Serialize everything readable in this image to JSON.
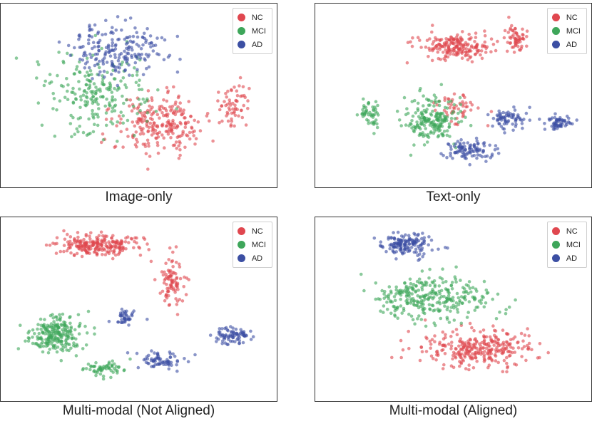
{
  "colors": {
    "NC": "#e0474f",
    "MCI": "#3ea65a",
    "AD": "#3c4fa3"
  },
  "panels": [
    {
      "caption": "Image-only",
      "legend": [
        "NC",
        "MCI",
        "AD"
      ]
    },
    {
      "caption": "Text-only",
      "legend": [
        "NC",
        "MCI",
        "AD"
      ]
    },
    {
      "caption": "Multi-modal (Not Aligned)",
      "legend": [
        "NC",
        "MCI",
        "AD"
      ]
    },
    {
      "caption": "Multi-modal (Aligned)",
      "legend": [
        "NC",
        "MCI",
        "AD"
      ]
    }
  ],
  "chart_data": [
    {
      "type": "scatter",
      "title": "Image-only",
      "legend_position": "top-right",
      "axes_visible": false,
      "series": [
        {
          "name": "NC",
          "color": "#e0474f",
          "clusters": [
            {
              "cx": 0.58,
              "cy": 0.66,
              "sx": 0.17,
              "sy": 0.16,
              "n": 240
            },
            {
              "cx": 0.84,
              "cy": 0.55,
              "sx": 0.06,
              "sy": 0.12,
              "n": 60
            }
          ]
        },
        {
          "name": "MCI",
          "color": "#3ea65a",
          "clusters": [
            {
              "cx": 0.35,
              "cy": 0.5,
              "sx": 0.18,
              "sy": 0.22,
              "n": 220
            }
          ]
        },
        {
          "name": "AD",
          "color": "#3c4fa3",
          "clusters": [
            {
              "cx": 0.42,
              "cy": 0.25,
              "sx": 0.18,
              "sy": 0.14,
              "n": 200
            }
          ]
        }
      ]
    },
    {
      "type": "scatter",
      "title": "Text-only",
      "legend_position": "top-right",
      "axes_visible": false,
      "series": [
        {
          "name": "NC",
          "color": "#e0474f",
          "clusters": [
            {
              "cx": 0.5,
              "cy": 0.23,
              "sx": 0.12,
              "sy": 0.07,
              "n": 200
            },
            {
              "cx": 0.73,
              "cy": 0.2,
              "sx": 0.04,
              "sy": 0.1,
              "n": 60
            },
            {
              "cx": 0.52,
              "cy": 0.57,
              "sx": 0.09,
              "sy": 0.09,
              "n": 50
            }
          ]
        },
        {
          "name": "MCI",
          "color": "#3ea65a",
          "clusters": [
            {
              "cx": 0.42,
              "cy": 0.63,
              "sx": 0.1,
              "sy": 0.12,
              "n": 200
            },
            {
              "cx": 0.2,
              "cy": 0.6,
              "sx": 0.04,
              "sy": 0.07,
              "n": 50
            }
          ]
        },
        {
          "name": "AD",
          "color": "#3c4fa3",
          "clusters": [
            {
              "cx": 0.55,
              "cy": 0.8,
              "sx": 0.1,
              "sy": 0.05,
              "n": 100
            },
            {
              "cx": 0.7,
              "cy": 0.63,
              "sx": 0.06,
              "sy": 0.05,
              "n": 70
            },
            {
              "cx": 0.88,
              "cy": 0.65,
              "sx": 0.05,
              "sy": 0.04,
              "n": 60
            }
          ]
        }
      ]
    },
    {
      "type": "scatter",
      "title": "Multi-modal (Not Aligned)",
      "legend_position": "top-right",
      "axes_visible": false,
      "series": [
        {
          "name": "NC",
          "color": "#e0474f",
          "clusters": [
            {
              "cx": 0.35,
              "cy": 0.15,
              "sx": 0.15,
              "sy": 0.06,
              "n": 230
            },
            {
              "cx": 0.62,
              "cy": 0.35,
              "sx": 0.05,
              "sy": 0.14,
              "n": 90
            }
          ]
        },
        {
          "name": "MCI",
          "color": "#3ea65a",
          "clusters": [
            {
              "cx": 0.2,
              "cy": 0.63,
              "sx": 0.1,
              "sy": 0.1,
              "n": 230
            },
            {
              "cx": 0.38,
              "cy": 0.82,
              "sx": 0.08,
              "sy": 0.04,
              "n": 60
            }
          ]
        },
        {
          "name": "AD",
          "color": "#3c4fa3",
          "clusters": [
            {
              "cx": 0.85,
              "cy": 0.64,
              "sx": 0.07,
              "sy": 0.05,
              "n": 80
            },
            {
              "cx": 0.58,
              "cy": 0.78,
              "sx": 0.08,
              "sy": 0.05,
              "n": 70
            },
            {
              "cx": 0.45,
              "cy": 0.55,
              "sx": 0.04,
              "sy": 0.04,
              "n": 40
            }
          ]
        }
      ]
    },
    {
      "type": "scatter",
      "title": "Multi-modal (Aligned)",
      "legend_position": "top-right",
      "axes_visible": false,
      "series": [
        {
          "name": "NC",
          "color": "#e0474f",
          "clusters": [
            {
              "cx": 0.6,
              "cy": 0.72,
              "sx": 0.2,
              "sy": 0.1,
              "n": 300
            }
          ]
        },
        {
          "name": "MCI",
          "color": "#3ea65a",
          "clusters": [
            {
              "cx": 0.42,
              "cy": 0.44,
              "sx": 0.22,
              "sy": 0.12,
              "n": 300
            }
          ]
        },
        {
          "name": "AD",
          "color": "#3c4fa3",
          "clusters": [
            {
              "cx": 0.33,
              "cy": 0.15,
              "sx": 0.09,
              "sy": 0.06,
              "n": 150
            }
          ]
        }
      ]
    }
  ]
}
